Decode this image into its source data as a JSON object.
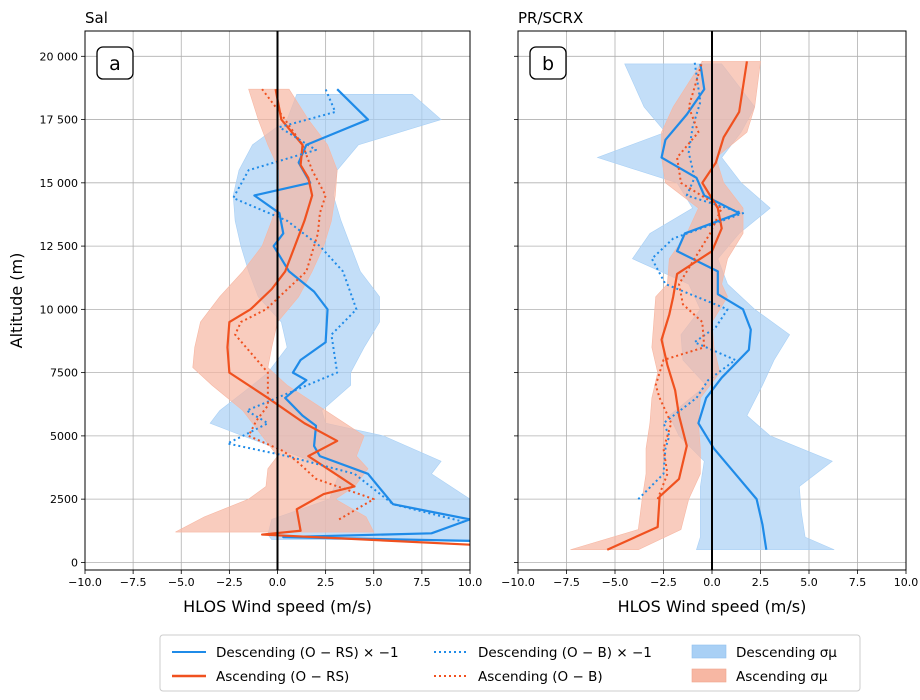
{
  "colors": {
    "descending": "#1f8be8",
    "ascending": "#f0511f",
    "descending_fill": "#a9d0f5",
    "ascending_fill": "#f7b7a3",
    "zero_line": "#000000",
    "grid": "#b0b0b0"
  },
  "legend": {
    "desc_rs": "Descending (O − RS) × −1",
    "asc_rs": "Ascending (O − RS)",
    "desc_b": "Descending (O − B) × −1",
    "asc_b": "Ascending (O − B)",
    "desc_sigma": "Descending σμ",
    "asc_sigma": "Ascending σμ"
  },
  "chart_data": [
    {
      "type": "line",
      "title": "Sal",
      "panel_label": "a",
      "xlabel": "HLOS Wind speed (m/s)",
      "ylabel": "Altitude  (m)",
      "xlim": [
        -10,
        10
      ],
      "ylim": [
        -300,
        21000
      ],
      "x_ticks": [
        -10,
        -7.5,
        -5,
        -2.5,
        0,
        2.5,
        5,
        7.5,
        10
      ],
      "x_tick_labels": [
        "−10.0",
        "−7.5",
        "−5.0",
        "−2.5",
        "0.0",
        "2.5",
        "5.0",
        "7.5",
        "10.0"
      ],
      "y_ticks": [
        0,
        2500,
        5000,
        7500,
        10000,
        12500,
        15000,
        17500,
        20000
      ],
      "y_tick_labels": [
        "0",
        "2500",
        "5000",
        "7500",
        "10 000",
        "12 500",
        "15 000",
        "17 500",
        "20 000"
      ],
      "grid": true,
      "series": [
        {
          "name": "Descending σμ",
          "kind": "band",
          "color_key": "descending_fill",
          "altitude": [
            900,
            1100,
            1700,
            2500,
            3500,
            4000,
            5000,
            5500,
            6000,
            7000,
            7500,
            8500,
            9500,
            10500,
            11500,
            12500,
            13500,
            14500,
            15500,
            16500,
            17500,
            18500
          ],
          "lower": [
            -0.3,
            -0.5,
            -0.3,
            2.7,
            3.2,
            1.8,
            -1.8,
            -3.5,
            -3.0,
            -1.3,
            -0.5,
            0.5,
            0.2,
            -1.0,
            -1.5,
            -1.9,
            -2.2,
            -2.3,
            -2.0,
            -1.3,
            0.5,
            1.0
          ],
          "upper": [
            10.0,
            10.0,
            10.0,
            10.0,
            8.0,
            8.5,
            5.5,
            2.5,
            2.3,
            3.8,
            3.8,
            4.5,
            5.3,
            5.3,
            4.3,
            3.8,
            3.3,
            2.9,
            3.1,
            4.2,
            8.5,
            7.0
          ]
        },
        {
          "name": "Ascending σμ",
          "kind": "band",
          "color_key": "ascending_fill",
          "altitude": [
            1200,
            1800,
            2500,
            3000,
            3700,
            4200,
            5000,
            6000,
            7000,
            7700,
            8500,
            9500,
            10500,
            11500,
            12500,
            13500,
            14500,
            15500,
            16500,
            17500,
            18700
          ],
          "lower": [
            -5.3,
            -3.8,
            -1.5,
            -0.6,
            -0.5,
            0.0,
            -0.8,
            -1.8,
            -3.4,
            -4.4,
            -4.3,
            -4.0,
            -3.0,
            -1.8,
            -0.8,
            -0.3,
            0.1,
            0.1,
            -0.5,
            -1.0,
            -1.5
          ],
          "upper": [
            5.0,
            4.6,
            3.0,
            4.0,
            4.7,
            4.1,
            4.5,
            2.5,
            0.5,
            -0.5,
            -0.3,
            0.0,
            1.1,
            1.8,
            2.4,
            2.8,
            3.0,
            3.1,
            2.6,
            1.6,
            0.6
          ]
        },
        {
          "name": "Descending (O − RS) × −1",
          "kind": "line",
          "style": "solid",
          "color_key": "descending",
          "altitude": [
            850,
            1000,
            1150,
            1700,
            2300,
            3500,
            4200,
            4600,
            5400,
            5800,
            6500,
            7200,
            7500,
            8000,
            8700,
            10000,
            10700,
            11500,
            12500,
            13000,
            13800,
            14500,
            15000,
            15800,
            16500,
            17500,
            18700
          ],
          "x": [
            10.0,
            0.3,
            8.0,
            10.0,
            6.0,
            4.7,
            2.2,
            1.9,
            2.0,
            1.3,
            0.4,
            1.5,
            0.8,
            1.2,
            2.5,
            2.6,
            1.9,
            0.6,
            -0.2,
            0.3,
            0.1,
            -1.2,
            1.7,
            1.1,
            1.5,
            4.7,
            3.1
          ]
        },
        {
          "name": "Ascending (O − RS)",
          "kind": "line",
          "style": "solid",
          "color_key": "ascending",
          "altitude": [
            700,
            1100,
            1250,
            2100,
            2700,
            3000,
            3500,
            4200,
            4800,
            5500,
            6500,
            7500,
            8500,
            9500,
            10000,
            10800,
            11500,
            12500,
            13500,
            14500,
            15200,
            15700,
            16500,
            17500,
            18700
          ],
          "x": [
            10.0,
            -0.8,
            1.2,
            1.0,
            2.4,
            4.0,
            3.0,
            1.6,
            3.1,
            1.4,
            -0.5,
            -2.5,
            -2.6,
            -2.5,
            -1.4,
            -0.3,
            0.4,
            0.9,
            1.4,
            1.8,
            1.6,
            1.2,
            1.3,
            0.2,
            -0.1
          ]
        },
        {
          "name": "Descending (O − B) × −1",
          "kind": "line",
          "style": "dotted",
          "color_key": "descending",
          "altitude": [
            1600,
            2300,
            3500,
            4200,
            4700,
            5000,
            5500,
            6000,
            7500,
            9000,
            10000,
            11500,
            12500,
            13500,
            14400,
            15500,
            16300,
            17200,
            17800,
            18700
          ],
          "x": [
            9.7,
            6.0,
            4.0,
            0.5,
            -2.6,
            -1.8,
            -0.5,
            -1.6,
            3.1,
            2.8,
            4.1,
            3.4,
            2.2,
            0.5,
            -2.3,
            -1.5,
            2.0,
            0.1,
            3.0,
            2.5
          ]
        },
        {
          "name": "Ascending (O − B)",
          "kind": "line",
          "style": "dotted",
          "color_key": "ascending",
          "altitude": [
            1700,
            2500,
            3300,
            4000,
            4400,
            5000,
            5600,
            6200,
            7500,
            9000,
            9500,
            10000,
            11500,
            13000,
            13800,
            14500,
            15500,
            16500,
            17600,
            18700
          ],
          "x": [
            3.2,
            5.0,
            2.0,
            1.0,
            0.3,
            -1.5,
            -1.1,
            -0.5,
            -0.5,
            -2.2,
            -1.9,
            -0.6,
            1.5,
            2.1,
            2.2,
            2.5,
            1.8,
            1.3,
            0.3,
            -0.8
          ]
        }
      ]
    },
    {
      "type": "line",
      "title": "PR/SCRX",
      "panel_label": "b",
      "xlabel": "HLOS Wind speed (m/s)",
      "ylabel": "",
      "xlim": [
        -10,
        10
      ],
      "ylim": [
        -300,
        21000
      ],
      "x_ticks": [
        -10,
        -7.5,
        -5,
        -2.5,
        0,
        2.5,
        5,
        7.5,
        10
      ],
      "x_tick_labels": [
        "−10.0",
        "−7.5",
        "−5.0",
        "−2.5",
        "0.0",
        "2.5",
        "5.0",
        "7.5",
        "10.0"
      ],
      "y_ticks": [
        0,
        2500,
        5000,
        7500,
        10000,
        12500,
        15000,
        17500,
        20000
      ],
      "y_tick_labels": [],
      "grid": true,
      "series": [
        {
          "name": "Descending σμ",
          "kind": "band",
          "color_key": "descending_fill",
          "altitude": [
            500,
            1000,
            2000,
            3000,
            4000,
            5000,
            5800,
            7000,
            8000,
            9000,
            10000,
            11000,
            12000,
            13000,
            14000,
            15000,
            16000,
            17000,
            18000,
            19700
          ],
          "lower": [
            -0.8,
            -0.6,
            -0.6,
            -0.6,
            -0.4,
            -1.7,
            -2.2,
            -0.3,
            -1.5,
            -1.6,
            -0.6,
            -1.2,
            -4.1,
            -3.2,
            -1.0,
            -1.8,
            -5.9,
            -2.4,
            -3.5,
            -4.5
          ],
          "upper": [
            6.3,
            4.8,
            4.6,
            4.5,
            6.2,
            3.0,
            1.8,
            2.6,
            3.2,
            4.0,
            2.2,
            0.8,
            0.3,
            1.4,
            3.0,
            1.5,
            0.5,
            1.5,
            2.2,
            0.5
          ]
        },
        {
          "name": "Ascending σμ",
          "kind": "band",
          "color_key": "ascending_fill",
          "altitude": [
            500,
            1300,
            2500,
            3500,
            4500,
            5500,
            6500,
            7500,
            8500,
            9500,
            10500,
            11000,
            12000,
            13000,
            14000,
            15000,
            16000,
            17000,
            18000,
            19800
          ],
          "lower": [
            -7.3,
            -3.8,
            -3.6,
            -3.4,
            -3.4,
            -3.2,
            -3.1,
            -2.8,
            -3.1,
            -3.0,
            -2.9,
            -2.3,
            -2.2,
            -1.3,
            -0.7,
            -2.4,
            -2.6,
            -2.6,
            -2.0,
            -0.5
          ],
          "upper": [
            -3.8,
            -1.6,
            -1.2,
            -0.6,
            -0.6,
            -0.7,
            -0.6,
            0.4,
            0.1,
            0.0,
            0.8,
            0.5,
            0.8,
            1.6,
            1.6,
            0.6,
            0.2,
            1.8,
            2.2,
            2.5
          ]
        },
        {
          "name": "Descending (O − RS) × −1",
          "kind": "line",
          "style": "solid",
          "color_key": "descending",
          "altitude": [
            500,
            1500,
            2500,
            3500,
            4500,
            5500,
            6500,
            7300,
            8400,
            9200,
            10000,
            10600,
            11500,
            12300,
            13000,
            13800,
            14500,
            15200,
            16000,
            16700,
            17700,
            18700,
            19700
          ],
          "x": [
            2.8,
            2.6,
            2.3,
            1.2,
            0.1,
            -0.7,
            -0.3,
            0.5,
            1.9,
            2.0,
            1.6,
            0.3,
            0.3,
            -1.8,
            -1.4,
            1.4,
            -0.4,
            -0.8,
            -2.6,
            -2.4,
            -1.3,
            -0.4,
            -0.6
          ]
        },
        {
          "name": "Ascending (O − RS)",
          "kind": "line",
          "style": "solid",
          "color_key": "ascending",
          "altitude": [
            500,
            1400,
            2600,
            3300,
            4600,
            5800,
            6800,
            7800,
            8800,
            9800,
            10500,
            11400,
            12300,
            13200,
            14000,
            15000,
            15800,
            16800,
            17800,
            19800
          ],
          "x": [
            -5.4,
            -2.8,
            -2.7,
            -1.7,
            -1.3,
            -1.7,
            -1.9,
            -2.3,
            -2.6,
            -2.2,
            -2.0,
            -1.8,
            0.0,
            0.5,
            0.3,
            -0.5,
            0.2,
            0.6,
            1.4,
            1.8
          ]
        },
        {
          "name": "Descending (O − B) × −1",
          "kind": "line",
          "style": "dotted",
          "color_key": "descending",
          "altitude": [
            2500,
            3500,
            4500,
            5000,
            5500,
            6500,
            7200,
            8000,
            8700,
            9300,
            10000,
            11000,
            12000,
            12800,
            13800,
            14500,
            15200,
            16200,
            17200,
            18200,
            19800
          ],
          "x": [
            -3.8,
            -2.5,
            -2.4,
            -2.2,
            -2.5,
            -0.8,
            -0.2,
            1.2,
            -0.9,
            0.2,
            0.8,
            -2.4,
            -3.1,
            -2.0,
            1.6,
            -1.3,
            -0.9,
            -1.2,
            -1.0,
            -0.6,
            -0.9
          ]
        },
        {
          "name": "Ascending (O − B)",
          "kind": "line",
          "style": "dotted",
          "color_key": "ascending",
          "altitude": [
            2500,
            3500,
            4500,
            5500,
            6500,
            7000,
            8000,
            8500,
            9500,
            10200,
            11000,
            12000,
            13000,
            14000,
            15000,
            16000,
            17000,
            18000,
            19800
          ],
          "x": [
            -2.8,
            -2.3,
            -2.5,
            -2.1,
            -2.7,
            -2.9,
            -2.5,
            -0.4,
            -0.5,
            -1.5,
            -1.7,
            -0.9,
            -0.1,
            0.5,
            -1.6,
            -1.8,
            -0.7,
            -1.2,
            -0.5
          ]
        }
      ]
    }
  ]
}
